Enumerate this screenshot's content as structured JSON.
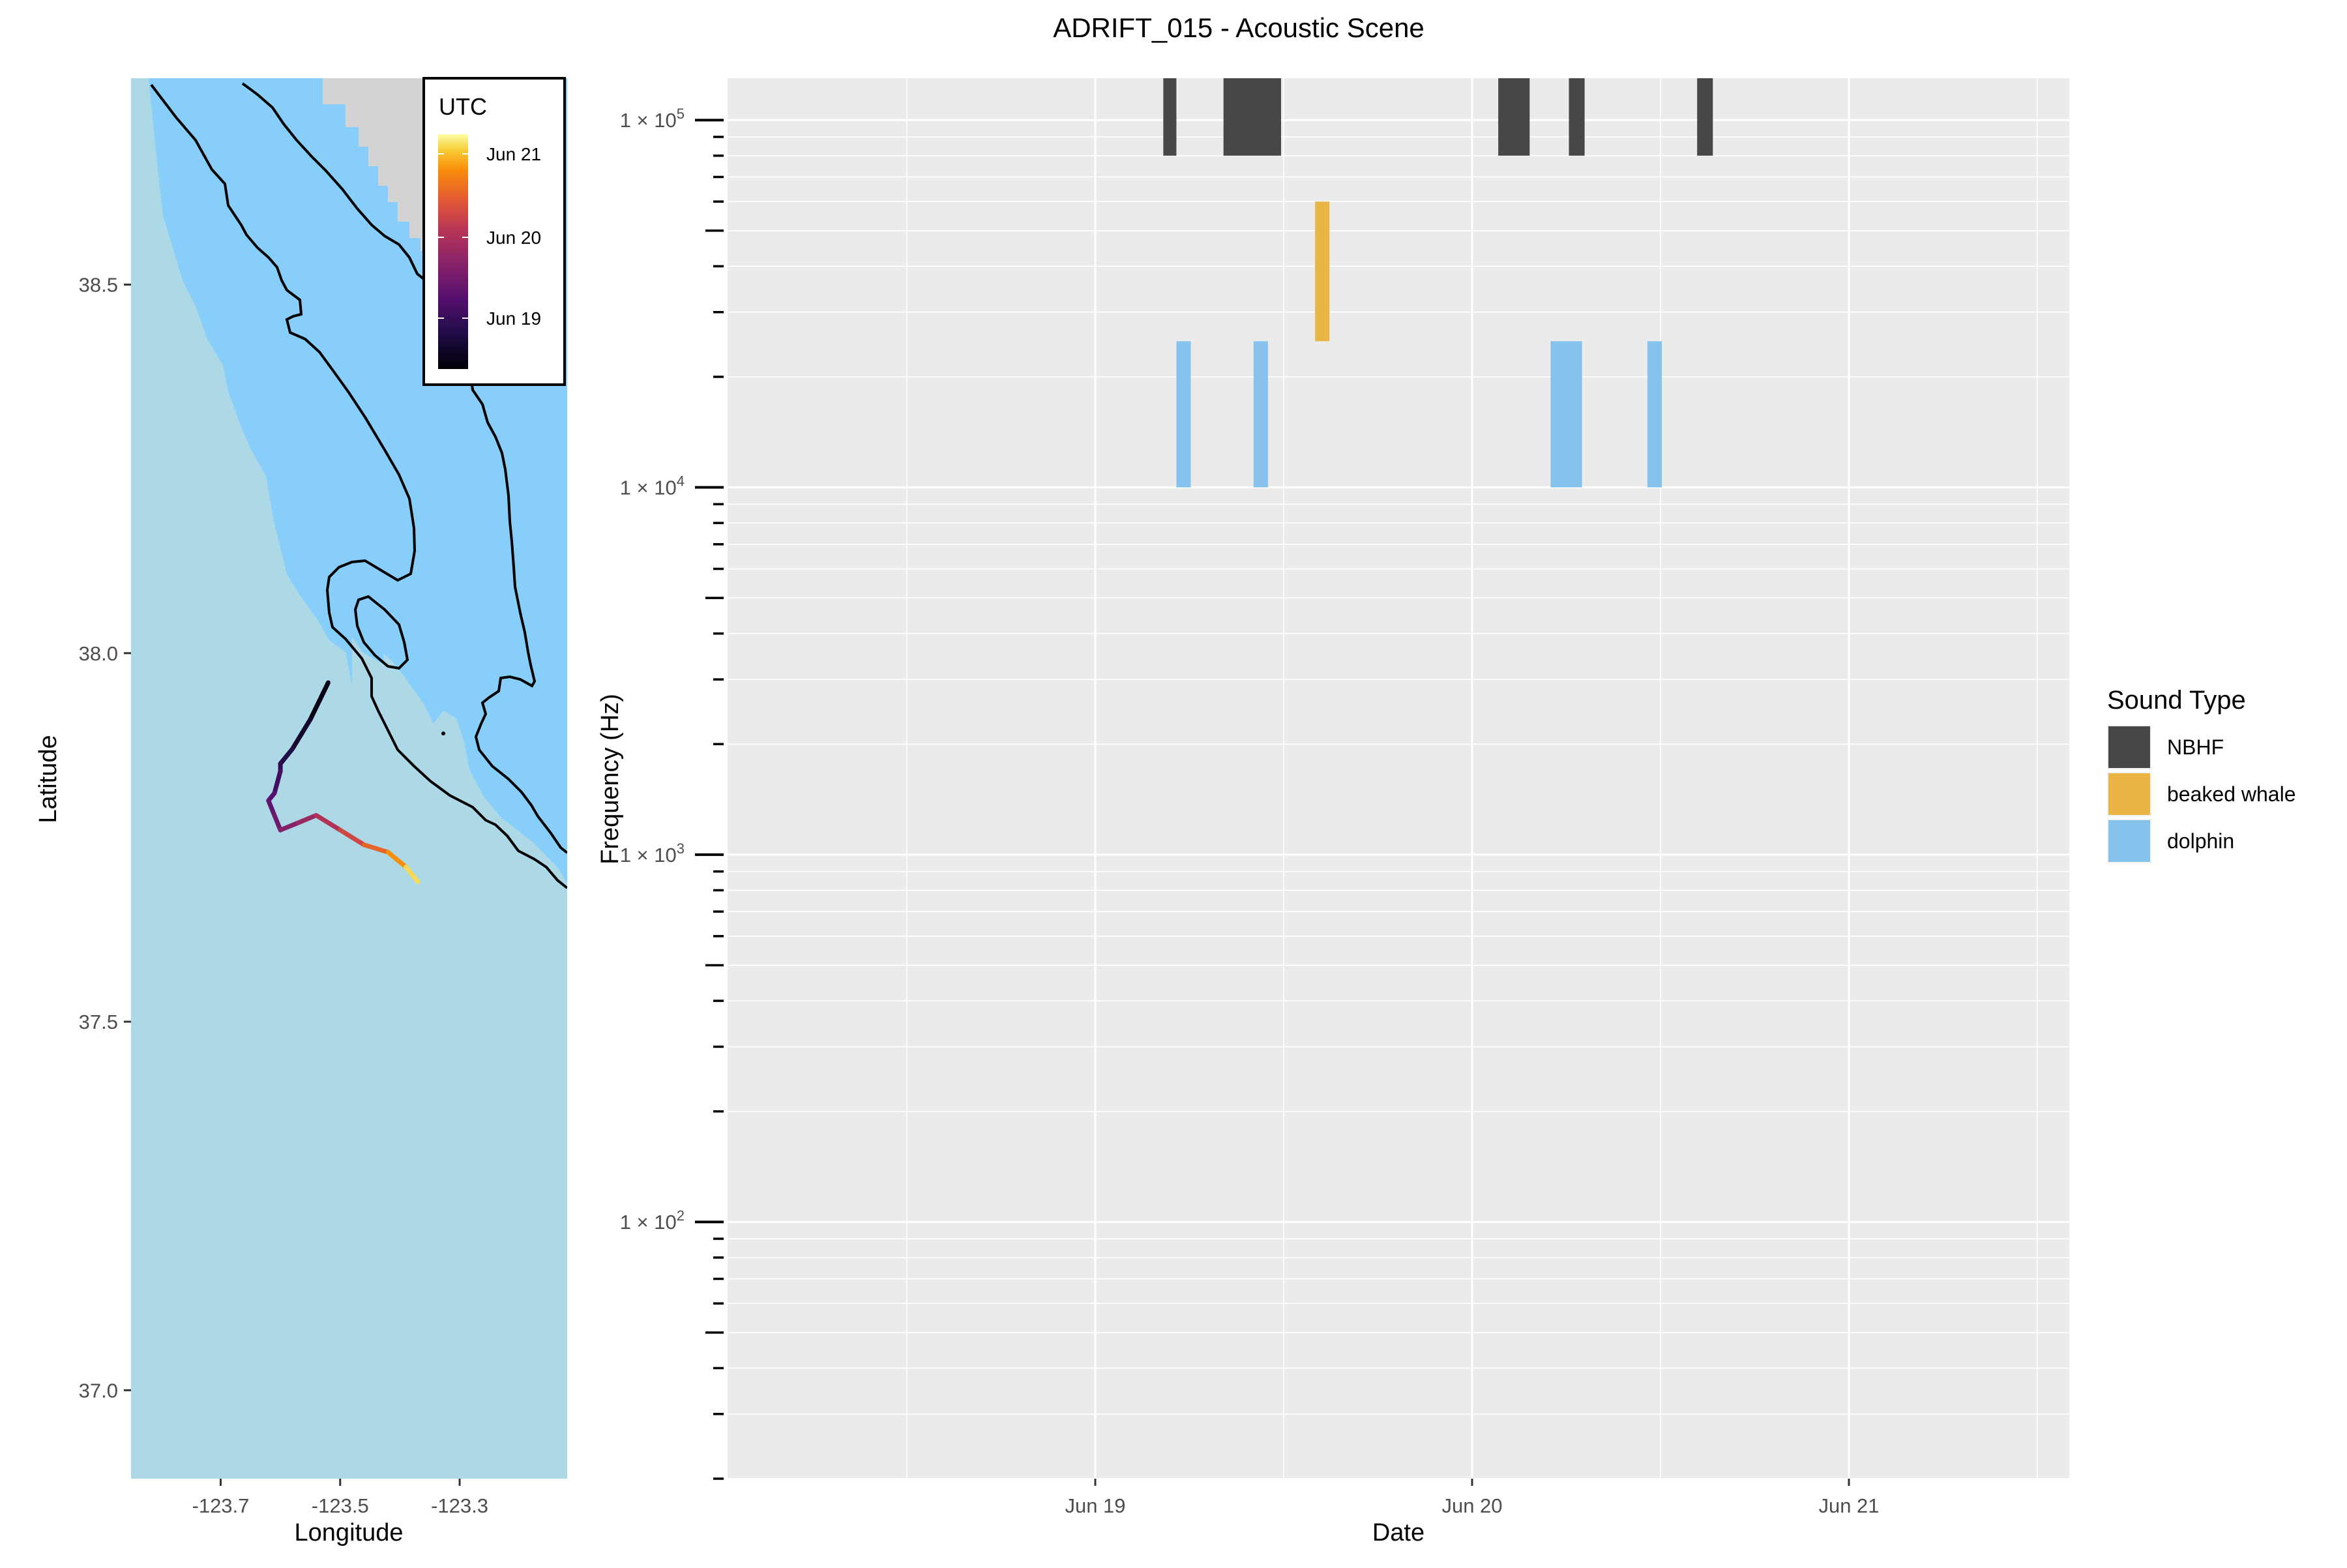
{
  "title": "ADRIFT_015 - Acoustic Scene",
  "colors": {
    "panel_bg": "#EBEBEB",
    "grid": "#FFFFFF",
    "ocean_deep": "#ADD8E6",
    "ocean_shelf": "#87CEFA",
    "land": "#D3D3D3",
    "contour": "#000000"
  },
  "chart_data": [
    {
      "type": "map",
      "xlabel": "Longitude",
      "ylabel": "Latitude",
      "x_ticks": [
        {
          "value": -123.7,
          "label": "-123.7"
        },
        {
          "value": -123.5,
          "label": "-123.5"
        },
        {
          "value": -123.3,
          "label": "-123.3"
        }
      ],
      "y_ticks": [
        {
          "value": 37.0,
          "label": "37.0"
        },
        {
          "value": 37.5,
          "label": "37.5"
        },
        {
          "value": 38.0,
          "label": "38.0"
        },
        {
          "value": 38.5,
          "label": "38.5"
        }
      ],
      "xlim": [
        -123.85,
        -123.12
      ],
      "ylim": [
        36.88,
        38.78
      ],
      "legend": {
        "title": "UTC",
        "placement": "top-right inside panel",
        "colorscale": "inferno",
        "labels": [
          "Jun 21",
          "Jun 20",
          "Jun 19"
        ]
      },
      "drift_track": [
        {
          "lon": -123.52,
          "lat": 37.96,
          "t": 0.0
        },
        {
          "lon": -123.55,
          "lat": 37.91,
          "t": 0.06
        },
        {
          "lon": -123.58,
          "lat": 37.87,
          "t": 0.12
        },
        {
          "lon": -123.6,
          "lat": 37.85,
          "t": 0.18
        },
        {
          "lon": -123.6,
          "lat": 37.84,
          "t": 0.22
        },
        {
          "lon": -123.61,
          "lat": 37.81,
          "t": 0.28
        },
        {
          "lon": -123.62,
          "lat": 37.8,
          "t": 0.32
        },
        {
          "lon": -123.61,
          "lat": 37.78,
          "t": 0.36
        },
        {
          "lon": -123.6,
          "lat": 37.76,
          "t": 0.4
        },
        {
          "lon": -123.57,
          "lat": 37.77,
          "t": 0.48
        },
        {
          "lon": -123.54,
          "lat": 37.78,
          "t": 0.54
        },
        {
          "lon": -123.5,
          "lat": 37.76,
          "t": 0.62
        },
        {
          "lon": -123.46,
          "lat": 37.74,
          "t": 0.7
        },
        {
          "lon": -123.42,
          "lat": 37.73,
          "t": 0.8
        },
        {
          "lon": -123.39,
          "lat": 37.71,
          "t": 0.9
        },
        {
          "lon": -123.37,
          "lat": 37.69,
          "t": 1.0
        }
      ]
    },
    {
      "type": "bar",
      "subtype": "time-frequency rectangles",
      "xlabel": "Date",
      "ylabel": "Frequency (Hz)",
      "y_scale": "log10",
      "ylim": [
        20,
        130000
      ],
      "x_ticks": [
        {
          "value": "2023-06-19",
          "label": "Jun 19"
        },
        {
          "value": "2023-06-20",
          "label": "Jun 20"
        },
        {
          "value": "2023-06-21",
          "label": "Jun 21"
        }
      ],
      "y_ticks": [
        {
          "value": 100,
          "label_base": "1 × 10",
          "label_exp": "2"
        },
        {
          "value": 1000,
          "label_base": "1 × 10",
          "label_exp": "3"
        },
        {
          "value": 10000,
          "label_base": "1 × 10",
          "label_exp": "4"
        },
        {
          "value": 100000,
          "label_base": "1 × 10",
          "label_exp": "5"
        }
      ],
      "legend": {
        "title": "Sound Type",
        "placement": "right",
        "items": [
          {
            "label": "NBHF",
            "color": "#474747"
          },
          {
            "label": "beaked whale",
            "color": "#E9B544"
          },
          {
            "label": "dolphin",
            "color": "#85C3EC"
          }
        ]
      },
      "series": [
        {
          "name": "NBHF",
          "color": "#474747",
          "events": [
            {
              "start": "2023-06-19T04:20",
              "end": "2023-06-19T05:10",
              "fmin": 80000,
              "fmax": 130000
            },
            {
              "start": "2023-06-19T08:10",
              "end": "2023-06-19T11:50",
              "fmin": 80000,
              "fmax": 130000
            },
            {
              "start": "2023-06-20T01:40",
              "end": "2023-06-20T03:40",
              "fmin": 80000,
              "fmax": 130000
            },
            {
              "start": "2023-06-20T06:10",
              "end": "2023-06-20T07:10",
              "fmin": 80000,
              "fmax": 130000
            },
            {
              "start": "2023-06-20T14:20",
              "end": "2023-06-20T15:20",
              "fmin": 80000,
              "fmax": 130000
            }
          ]
        },
        {
          "name": "beaked whale",
          "color": "#E9B544",
          "events": [
            {
              "start": "2023-06-19T14:00",
              "end": "2023-06-19T14:55",
              "fmin": 25000,
              "fmax": 60000
            }
          ]
        },
        {
          "name": "dolphin",
          "color": "#85C3EC",
          "events": [
            {
              "start": "2023-06-19T05:10",
              "end": "2023-06-19T06:05",
              "fmin": 10000,
              "fmax": 25000
            },
            {
              "start": "2023-06-19T10:05",
              "end": "2023-06-19T11:00",
              "fmin": 10000,
              "fmax": 25000
            },
            {
              "start": "2023-06-20T05:00",
              "end": "2023-06-20T07:00",
              "fmin": 10000,
              "fmax": 25000
            },
            {
              "start": "2023-06-20T11:10",
              "end": "2023-06-20T12:05",
              "fmin": 10000,
              "fmax": 25000
            }
          ]
        }
      ]
    }
  ]
}
